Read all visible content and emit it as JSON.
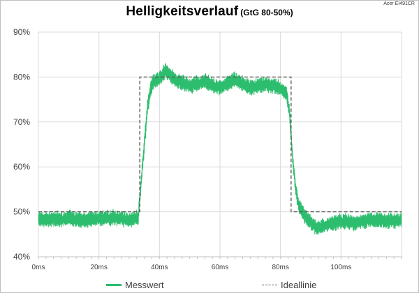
{
  "chart_data": {
    "type": "line",
    "title": "Helligkeitsverlauf",
    "subtitle": "(GtG 80-50%)",
    "corner_label": "Acer EI491CR",
    "x_unit": "ms",
    "xlim": [
      0,
      120
    ],
    "ylim": [
      40,
      90
    ],
    "x_ticks": [
      "0ms",
      "20ms",
      "40ms",
      "60ms",
      "80ms",
      "100ms"
    ],
    "y_ticks": [
      "40%",
      "50%",
      "60%",
      "70%",
      "80%",
      "90%"
    ],
    "grid": true,
    "legend_position": "bottom",
    "series": [
      {
        "name": "Messwert",
        "color": "#2dbd6e",
        "style": "solid",
        "x": [
          0,
          5,
          10,
          15,
          20,
          25,
          30,
          33,
          34,
          35,
          36,
          37,
          38,
          40,
          42,
          45,
          50,
          55,
          60,
          65,
          70,
          75,
          80,
          82,
          83,
          84,
          85,
          86,
          88,
          90,
          92,
          95,
          100,
          105,
          110,
          115,
          120
        ],
        "y": [
          48.5,
          48.3,
          48.6,
          48.2,
          48.5,
          48.7,
          48.2,
          48.8,
          57,
          65,
          73,
          77,
          79,
          79.5,
          81.5,
          79.5,
          78,
          79,
          77.5,
          79.5,
          77.5,
          78.5,
          77.5,
          76.5,
          72,
          62,
          55,
          51.5,
          49,
          47.5,
          46.5,
          47,
          48,
          47.5,
          48.3,
          48,
          48.2
        ],
        "noise_band": 3
      },
      {
        "name": "Ideallinie",
        "color": "#595959",
        "style": "dashed",
        "x": [
          0,
          33.5,
          33.5,
          83.5,
          83.5,
          120
        ],
        "y": [
          50,
          50,
          80,
          80,
          50,
          50
        ]
      }
    ]
  }
}
